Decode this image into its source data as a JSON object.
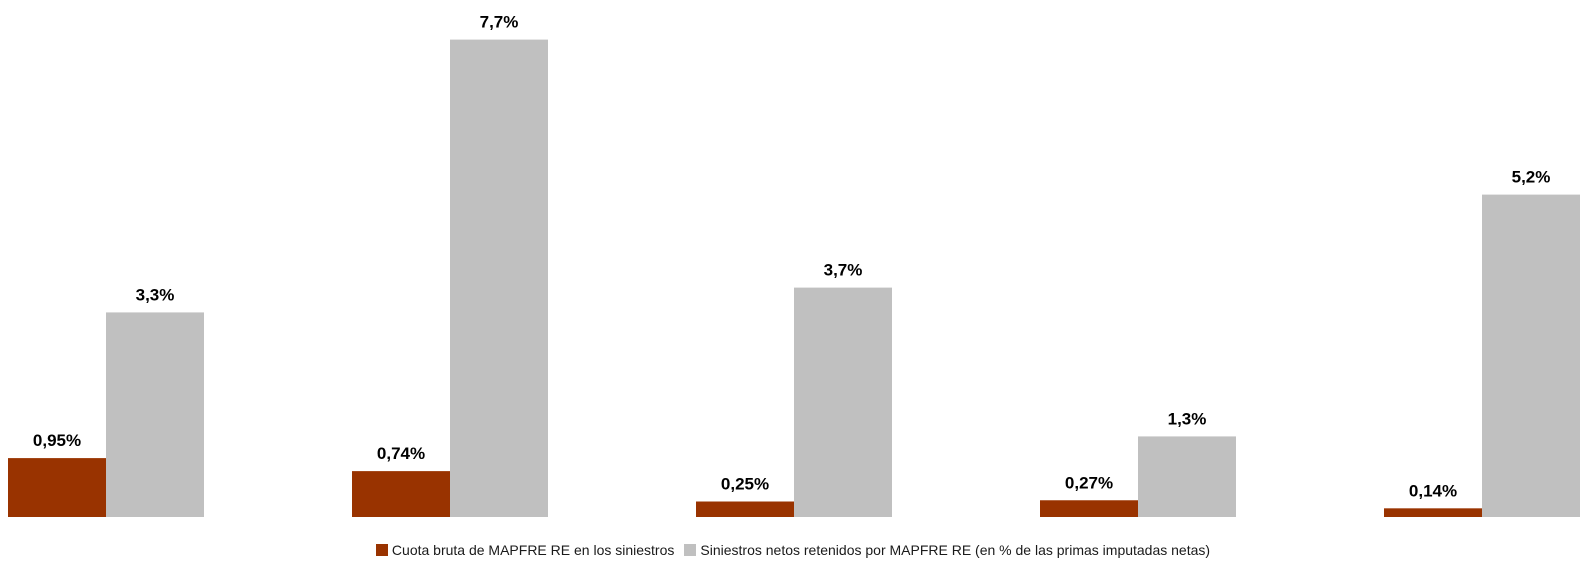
{
  "chart_data": {
    "type": "bar",
    "categories": [
      "",
      "",
      "",
      "",
      ""
    ],
    "ylim": [
      0,
      8.1
    ],
    "grid": false,
    "legend_position": "bottom",
    "series": [
      {
        "name": "Cuota bruta de MAPFRE RE en los siniestros",
        "color": "#993300",
        "values": [
          0.95,
          0.74,
          0.25,
          0.27,
          0.14
        ],
        "labels": [
          "0,95%",
          "0,74%",
          "0,25%",
          "0,27%",
          "0,14%"
        ]
      },
      {
        "name": "Siniestros netos retenidos por MAPFRE RE (en % de las primas imputadas netas)",
        "color": "#c0c0c0",
        "values": [
          3.3,
          7.7,
          3.7,
          1.3,
          5.2
        ],
        "labels": [
          "3,3%",
          "7,7%",
          "3,7%",
          "1,3%",
          "5,2%"
        ]
      }
    ]
  }
}
